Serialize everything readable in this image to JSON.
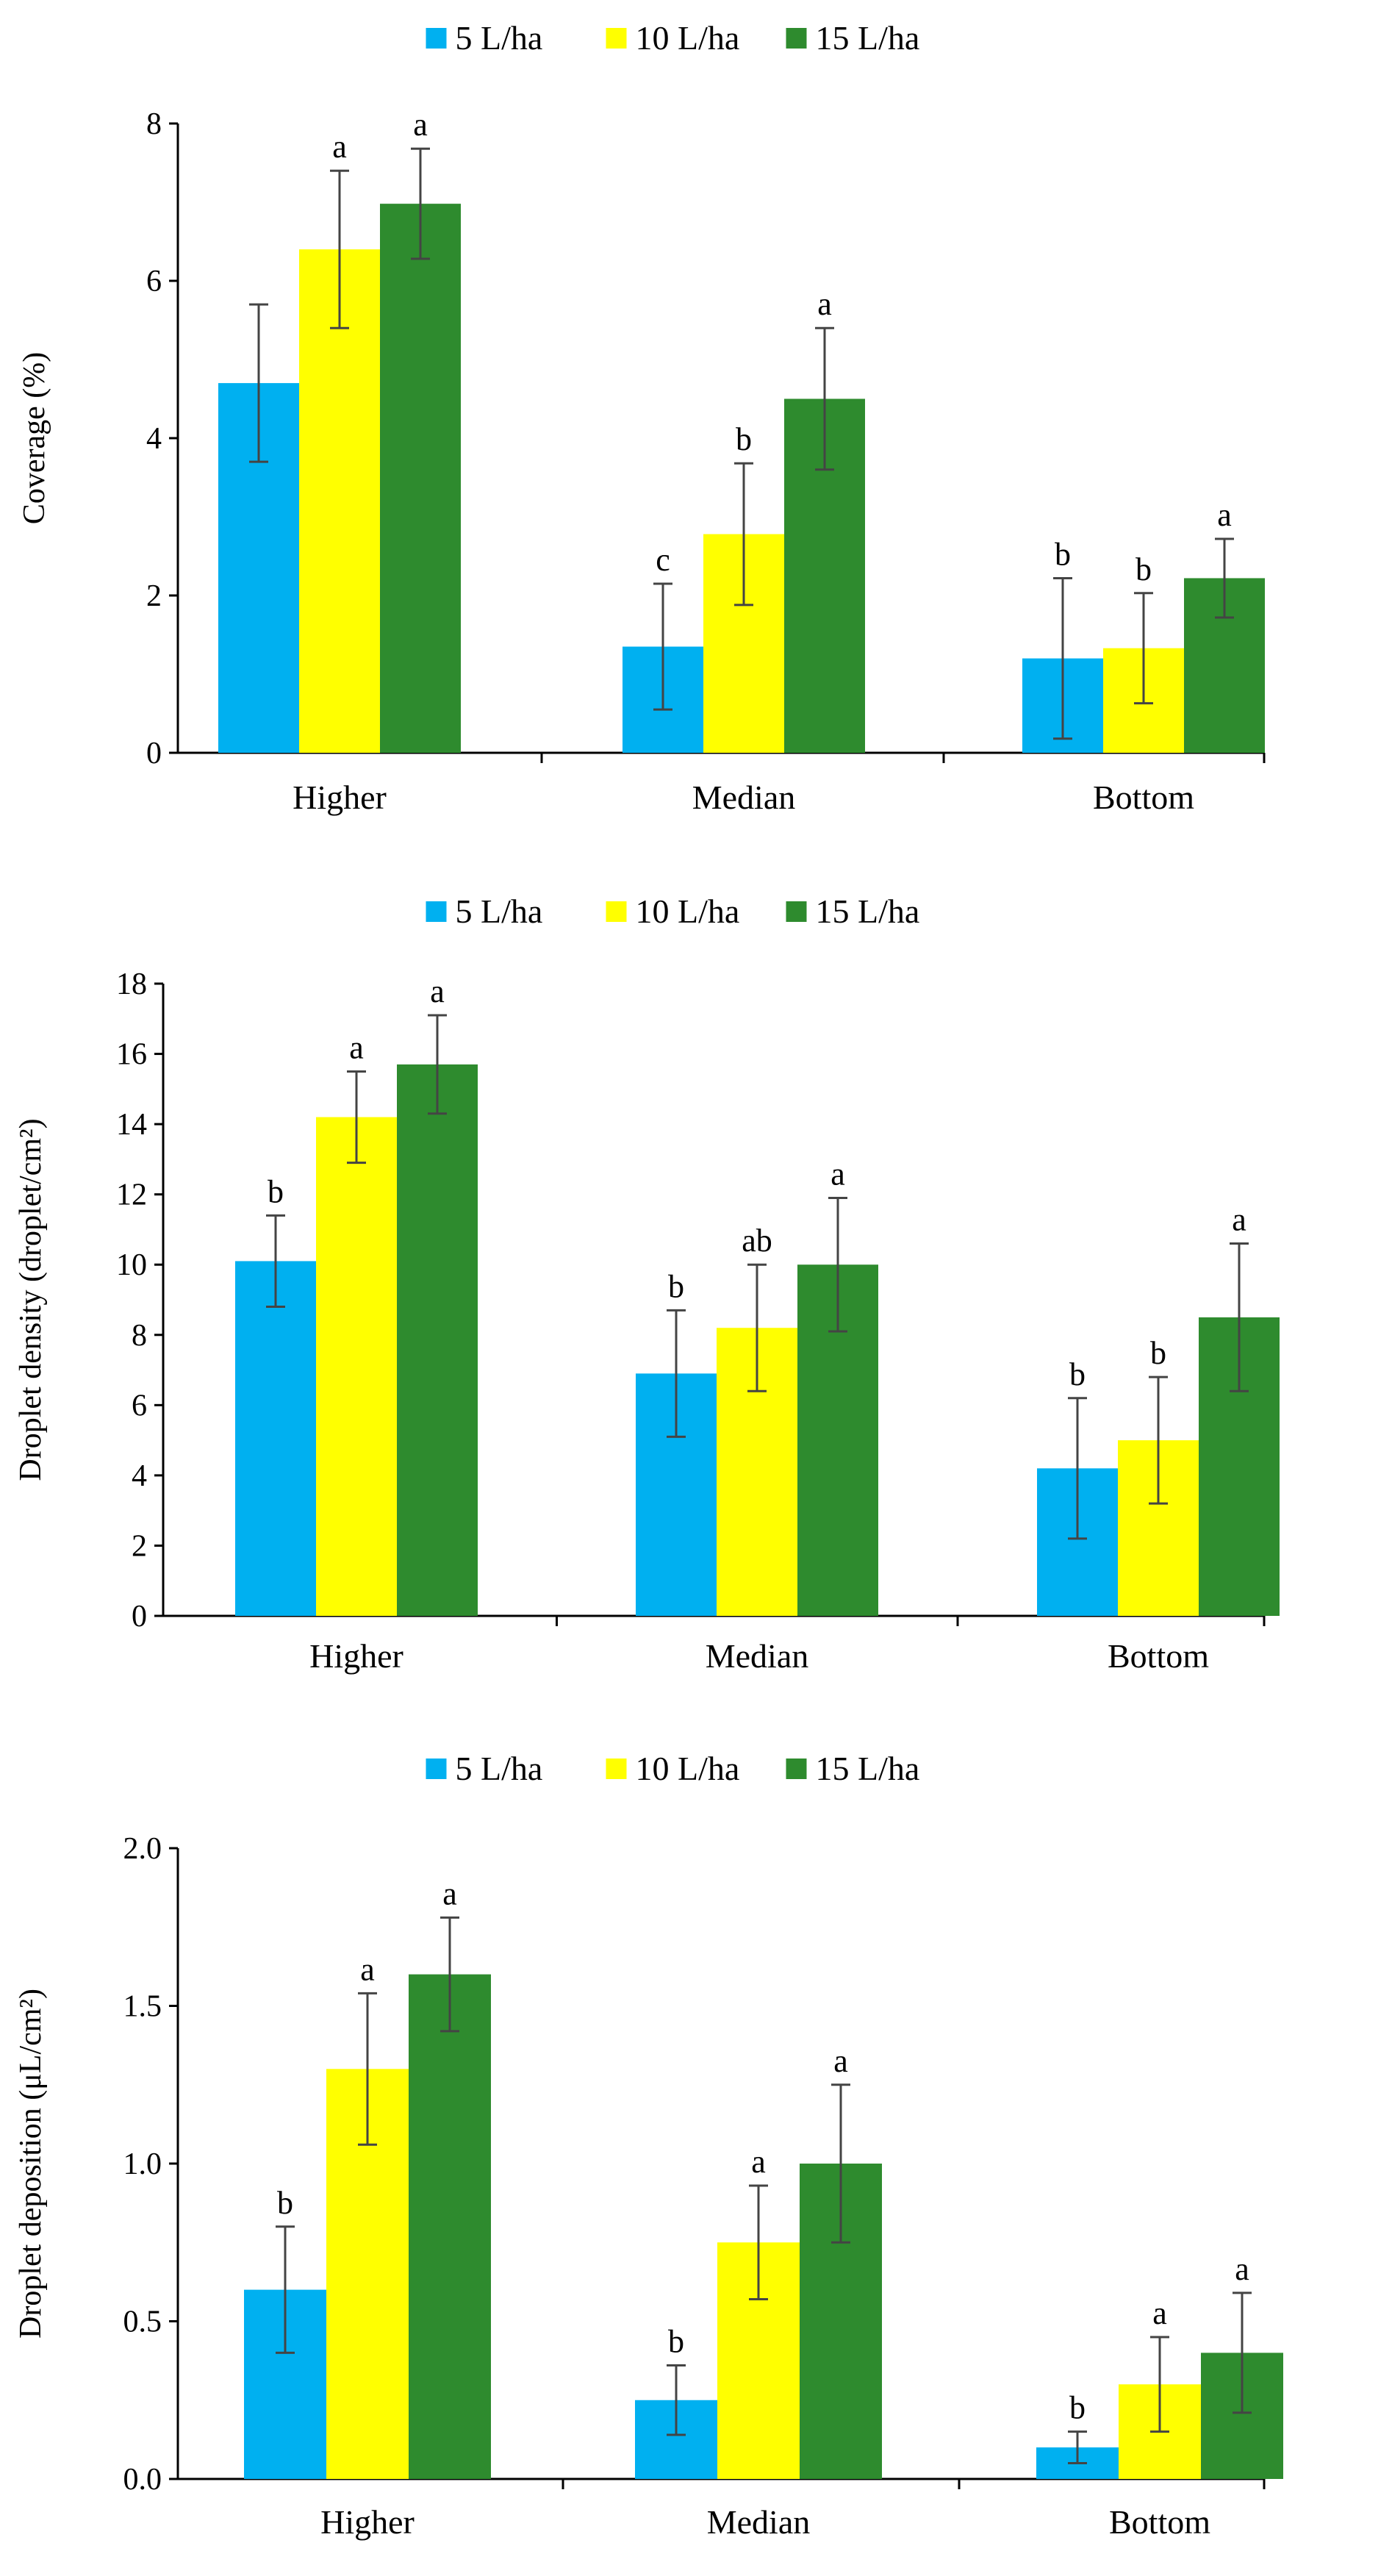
{
  "chart_data": [
    {
      "type": "bar",
      "title": "",
      "xlabel": "",
      "ylabel": "Coverage (%)",
      "ylim": [
        0,
        8
      ],
      "yticks": [
        "0",
        "2",
        "4",
        "6",
        "8"
      ],
      "ytick_values": [
        0,
        2,
        4,
        6,
        8
      ],
      "categories": [
        "Higher",
        "Median",
        "Bottom"
      ],
      "legend_position": "top-center",
      "grid": false,
      "series": [
        {
          "name": "5 L/ha",
          "color": "#00B0F0",
          "values": [
            4.7,
            1.35,
            1.2
          ],
          "errors": [
            1.0,
            0.8,
            1.02
          ],
          "letters": [
            "",
            "c",
            "b"
          ]
        },
        {
          "name": "10 L/ha",
          "color": "#FFFF00",
          "values": [
            6.4,
            2.78,
            1.33
          ],
          "errors": [
            1.0,
            0.9,
            0.7
          ],
          "letters": [
            "a",
            "b",
            "b"
          ]
        },
        {
          "name": "15 L/ha",
          "color": "#2E8B2E",
          "values": [
            6.98,
            4.5,
            2.22
          ],
          "errors": [
            0.7,
            0.9,
            0.5
          ],
          "letters": [
            "a",
            "a",
            "a"
          ]
        }
      ]
    },
    {
      "type": "bar",
      "title": "",
      "xlabel": "",
      "ylabel": "Droplet density (droplet/cm²)",
      "ylim": [
        0,
        18
      ],
      "yticks": [
        "0",
        "2",
        "4",
        "6",
        "8",
        "10",
        "12",
        "14",
        "16",
        "18"
      ],
      "ytick_values": [
        0,
        2,
        4,
        6,
        8,
        10,
        12,
        14,
        16,
        18
      ],
      "categories": [
        "Higher",
        "Median",
        "Bottom"
      ],
      "legend_position": "top-center",
      "grid": false,
      "series": [
        {
          "name": "5 L/ha",
          "color": "#00B0F0",
          "values": [
            10.1,
            6.9,
            4.2
          ],
          "errors": [
            1.3,
            1.8,
            2.0
          ],
          "letters": [
            "b",
            "b",
            "b"
          ]
        },
        {
          "name": "10 L/ha",
          "color": "#FFFF00",
          "values": [
            14.2,
            8.2,
            5.0
          ],
          "errors": [
            1.3,
            1.8,
            1.8
          ],
          "letters": [
            "a",
            "ab",
            "b"
          ]
        },
        {
          "name": "15 L/ha",
          "color": "#2E8B2E",
          "values": [
            15.7,
            10.0,
            8.5
          ],
          "errors": [
            1.4,
            1.9,
            2.1
          ],
          "letters": [
            "a",
            "a",
            "a"
          ]
        }
      ]
    },
    {
      "type": "bar",
      "title": "",
      "xlabel": "",
      "ylabel": "Droplet deposition (μL/cm²)",
      "ylim": [
        0,
        2
      ],
      "yticks": [
        "0.0",
        "0.5",
        "1.0",
        "1.5",
        "2.0"
      ],
      "ytick_values": [
        0,
        0.5,
        1.0,
        1.5,
        2.0
      ],
      "categories": [
        "Higher",
        "Median",
        "Bottom"
      ],
      "legend_position": "top-center",
      "grid": false,
      "series": [
        {
          "name": "5 L/ha",
          "color": "#00B0F0",
          "values": [
            0.6,
            0.25,
            0.1
          ],
          "errors": [
            0.2,
            0.11,
            0.05
          ],
          "letters": [
            "b",
            "b",
            "b"
          ]
        },
        {
          "name": "10 L/ha",
          "color": "#FFFF00",
          "values": [
            1.3,
            0.75,
            0.3
          ],
          "errors": [
            0.24,
            0.18,
            0.15
          ],
          "letters": [
            "a",
            "a",
            "a"
          ]
        },
        {
          "name": "15 L/ha",
          "color": "#2E8B2E",
          "values": [
            1.6,
            1.0,
            0.4
          ],
          "errors": [
            0.18,
            0.25,
            0.19
          ],
          "letters": [
            "a",
            "a",
            "a"
          ]
        }
      ]
    }
  ]
}
